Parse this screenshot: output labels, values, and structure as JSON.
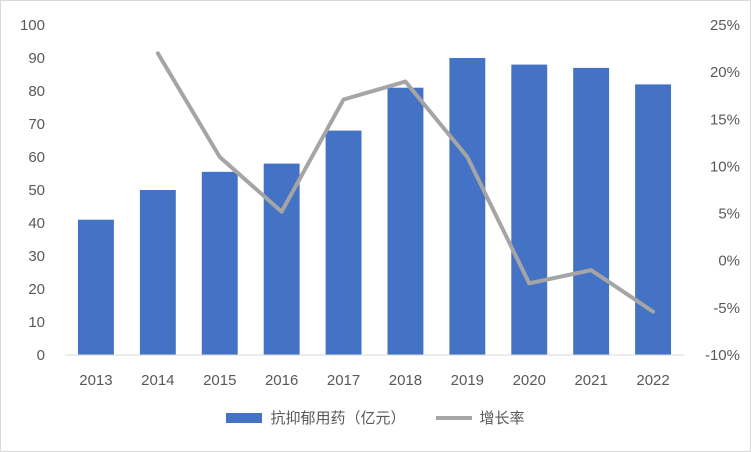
{
  "chart_data": {
    "type": "bar",
    "title": "",
    "categories": [
      "2013",
      "2014",
      "2015",
      "2016",
      "2017",
      "2018",
      "2019",
      "2020",
      "2021",
      "2022"
    ],
    "series": [
      {
        "name": "抗抑郁用药（亿元）",
        "type": "bar",
        "axis": "left",
        "color": "#4472C4",
        "values": [
          41,
          50,
          55.5,
          58,
          68,
          81,
          90,
          88,
          87,
          82
        ]
      },
      {
        "name": "增长率",
        "type": "line",
        "axis": "right",
        "color": "#A5A5A5",
        "values": [
          null,
          22.0,
          11.0,
          5.2,
          17.1,
          19.0,
          11.0,
          -2.4,
          -1.0,
          -5.4
        ]
      }
    ],
    "y_left": {
      "ylim": [
        0,
        100
      ],
      "ticks": [
        "0",
        "10",
        "20",
        "30",
        "40",
        "50",
        "60",
        "70",
        "80",
        "90",
        "100"
      ]
    },
    "y_right": {
      "ylim": [
        -10,
        25
      ],
      "ticks": [
        "-10%",
        "-5%",
        "0%",
        "5%",
        "10%",
        "15%",
        "20%",
        "25%"
      ]
    },
    "grid": false,
    "legend": {
      "position": "bottom"
    }
  }
}
